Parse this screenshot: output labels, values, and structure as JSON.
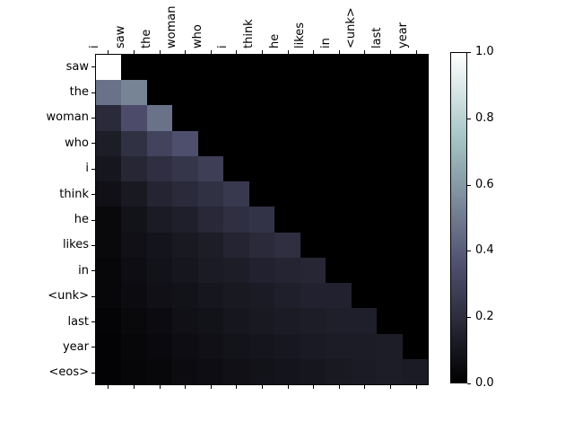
{
  "figure": {
    "title": "",
    "background_color": "#ffffff",
    "text_color": "#000000"
  },
  "chart_data": {
    "type": "heatmap",
    "description": "attention-weight matrix, lower-triangular (causal attention)",
    "x_labels": [
      "i",
      "saw",
      "the",
      "woman",
      "who",
      "i",
      "think",
      "he",
      "likes",
      "in",
      "<unk>",
      "last",
      "year"
    ],
    "y_labels": [
      "saw",
      "the",
      "woman",
      "who",
      "i",
      "think",
      "he",
      "likes",
      "in",
      "<unk>",
      "last",
      "year",
      "<eos>"
    ],
    "matrix": [
      [
        1.0,
        0,
        0,
        0,
        0,
        0,
        0,
        0,
        0,
        0,
        0,
        0,
        0
      ],
      [
        0.47,
        0.53,
        0,
        0,
        0,
        0,
        0,
        0,
        0,
        0,
        0,
        0,
        0
      ],
      [
        0.19,
        0.34,
        0.47,
        0,
        0,
        0,
        0,
        0,
        0,
        0,
        0,
        0,
        0
      ],
      [
        0.13,
        0.22,
        0.3,
        0.35,
        0,
        0,
        0,
        0,
        0,
        0,
        0,
        0,
        0
      ],
      [
        0.1,
        0.17,
        0.21,
        0.24,
        0.28,
        0,
        0,
        0,
        0,
        0,
        0,
        0,
        0
      ],
      [
        0.07,
        0.11,
        0.16,
        0.19,
        0.22,
        0.25,
        0,
        0,
        0,
        0,
        0,
        0,
        0
      ],
      [
        0.04,
        0.08,
        0.12,
        0.14,
        0.18,
        0.21,
        0.23,
        0,
        0,
        0,
        0,
        0,
        0
      ],
      [
        0.04,
        0.07,
        0.09,
        0.11,
        0.13,
        0.16,
        0.19,
        0.21,
        0,
        0,
        0,
        0,
        0
      ],
      [
        0.03,
        0.06,
        0.08,
        0.1,
        0.12,
        0.13,
        0.15,
        0.16,
        0.17,
        0,
        0,
        0,
        0
      ],
      [
        0.03,
        0.05,
        0.07,
        0.08,
        0.1,
        0.11,
        0.12,
        0.14,
        0.15,
        0.15,
        0,
        0,
        0
      ],
      [
        0.02,
        0.04,
        0.05,
        0.07,
        0.08,
        0.1,
        0.11,
        0.12,
        0.13,
        0.14,
        0.14,
        0,
        0
      ],
      [
        0.015,
        0.03,
        0.045,
        0.06,
        0.07,
        0.085,
        0.095,
        0.105,
        0.115,
        0.125,
        0.125,
        0.13,
        0
      ],
      [
        0.015,
        0.025,
        0.035,
        0.05,
        0.06,
        0.07,
        0.08,
        0.09,
        0.1,
        0.11,
        0.12,
        0.13,
        0.12
      ]
    ],
    "colormap": "bone",
    "vmin": 0.0,
    "vmax": 1.0,
    "grid": false,
    "colorbar": {
      "position": "right",
      "tick_labels": [
        "0.0",
        "0.2",
        "0.4",
        "0.6",
        "0.8",
        "1.0"
      ]
    }
  }
}
